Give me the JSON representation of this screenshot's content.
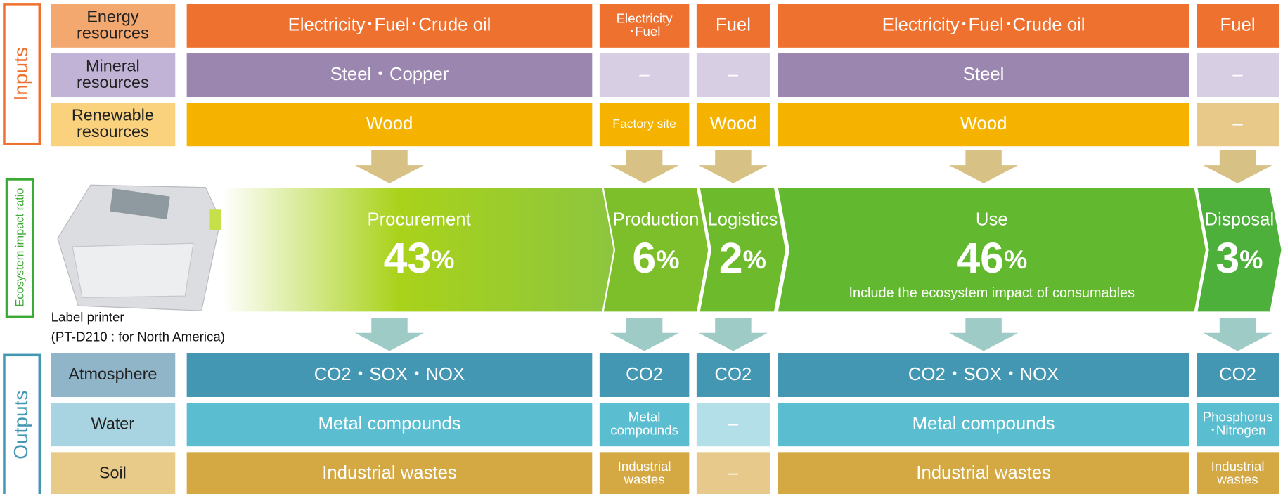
{
  "inputs": {
    "label": "Inputs",
    "rows": [
      {
        "label": [
          "Energy",
          "resources"
        ],
        "cells": [
          "Electricity･Fuel･Crude oil",
          [
            "Electricity",
            "･Fuel"
          ],
          "Fuel",
          "Electricity･Fuel･Crude oil",
          "Fuel"
        ]
      },
      {
        "label": [
          "Mineral",
          "resources"
        ],
        "cells": [
          "Steel・Copper",
          "–",
          "–",
          "Steel",
          "–"
        ]
      },
      {
        "label": [
          "Renewable",
          "resources"
        ],
        "cells": [
          "Wood",
          "Factory site",
          "Wood",
          "Wood",
          "–"
        ]
      }
    ]
  },
  "ecosystem": {
    "label": "Ecosystem impact ratio",
    "stages": [
      {
        "name": "Procurement",
        "value": "43",
        "unit": "%"
      },
      {
        "name": "Production",
        "value": "6",
        "unit": "%"
      },
      {
        "name": "Logistics",
        "value": "2",
        "unit": "%"
      },
      {
        "name": "Use",
        "value": "46",
        "unit": "%",
        "note": "Include the ecosystem impact of consumables"
      },
      {
        "name": "Disposal",
        "value": "3",
        "unit": "%"
      }
    ]
  },
  "product": {
    "caption": [
      "Label printer",
      "(PT-D210 : for North America)"
    ]
  },
  "outputs": {
    "label": "Outputs",
    "rows": [
      {
        "label": [
          "Atmosphere"
        ],
        "cells": [
          "CO2・SOX・NOX",
          "CO2",
          "CO2",
          "CO2・SOX・NOX",
          "CO2"
        ]
      },
      {
        "label": [
          "Water"
        ],
        "cells": [
          "Metal compounds",
          [
            "Metal",
            "compounds"
          ],
          "–",
          "Metal compounds",
          [
            "Phosphorus",
            "･Nitrogen"
          ]
        ]
      },
      {
        "label": [
          "Soil"
        ],
        "cells": [
          "Industrial wastes",
          [
            "Industrial",
            "wastes"
          ],
          "–",
          "Industrial wastes",
          [
            "Industrial",
            "wastes"
          ]
        ]
      }
    ]
  }
}
